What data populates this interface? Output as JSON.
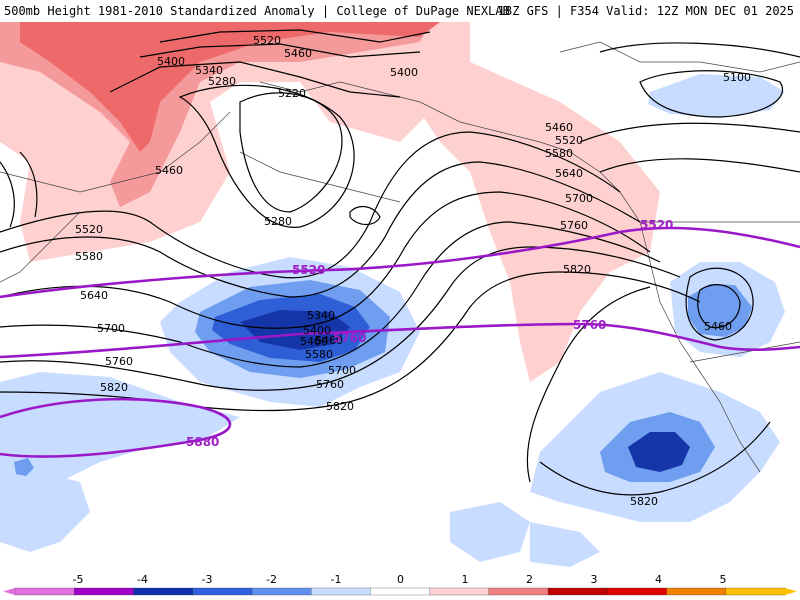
{
  "header": {
    "title_left": "500mb Height 1981-2010 Standardized Anomaly | College of DuPage NEXLAB",
    "title_right": "18Z GFS | F354 Valid: 12Z MON DEC 01 2025"
  },
  "contour_labels": {
    "black": [
      "5520",
      "5460",
      "5400",
      "5340",
      "5280",
      "5220",
      "5400",
      "5460",
      "5520",
      "5580",
      "5640",
      "5700",
      "5760",
      "5820",
      "5100",
      "5460",
      "5520",
      "5580",
      "5640",
      "5700",
      "5760",
      "5820",
      "5280",
      "5340",
      "5400",
      "5460",
      "5580",
      "5700",
      "5760",
      "5820",
      "5820",
      "5460",
      "5460"
    ],
    "purple": [
      "5520",
      "5520",
      "5760",
      "5760",
      "5880"
    ]
  },
  "colorbar": {
    "ticks": [
      "-5",
      "-4",
      "-3",
      "-2",
      "-1",
      "0",
      "1",
      "2",
      "3",
      "4",
      "5"
    ],
    "colors": [
      "#e070e0",
      "#a000c8",
      "#1030b0",
      "#3060e0",
      "#6090f0",
      "#c8dcff",
      "#ffffff",
      "#ffd0d0",
      "#f08080",
      "#c00000",
      "#e00000",
      "#f08000",
      "#ffc000"
    ]
  },
  "fill_colors": {
    "pos1": "#ffd0d0",
    "pos2": "#f59a9a",
    "pos3": "#ee6a6a",
    "neg1": "#c8dcff",
    "neg2": "#6f9ef0",
    "neg3": "#2f5fd6",
    "neg4": "#1536a8"
  }
}
